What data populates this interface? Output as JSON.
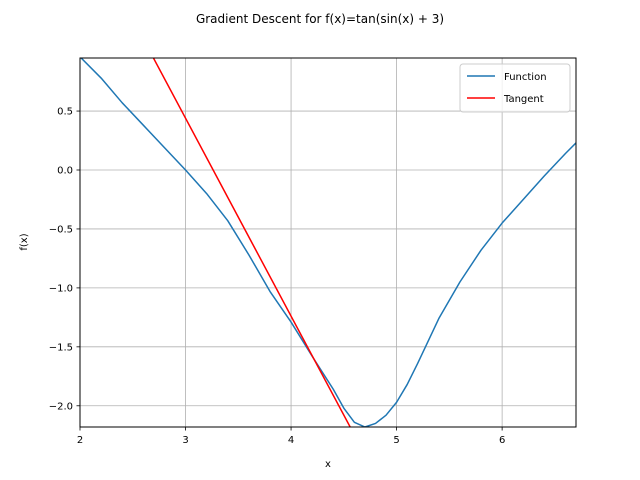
{
  "chart_data": {
    "type": "line",
    "title": "Gradient Descent for f(x)=tan(sin(x) + 3)",
    "xlabel": "x",
    "ylabel": "f(x)",
    "xlim": [
      2.0,
      6.7
    ],
    "ylim": [
      -2.18,
      0.95
    ],
    "xticks": [
      2,
      3,
      4,
      5,
      6
    ],
    "xtick_labels": [
      "2",
      "3",
      "4",
      "5",
      "6"
    ],
    "yticks": [
      -2.0,
      -1.5,
      -1.0,
      -0.5,
      0.0,
      0.5
    ],
    "ytick_labels": [
      "−2.0",
      "−1.5",
      "−1.0",
      "−0.5",
      "0.0",
      "0.5"
    ],
    "grid": true,
    "legend_position": "top-right",
    "series": [
      {
        "name": "Function",
        "color": "#1f77b4",
        "x": [
          2.0,
          2.2,
          2.4,
          2.6,
          2.8,
          3.0,
          3.2,
          3.4,
          3.6,
          3.8,
          4.0,
          4.2,
          4.4,
          4.5,
          4.6,
          4.7,
          4.8,
          4.9,
          5.0,
          5.1,
          5.2,
          5.4,
          5.6,
          5.8,
          6.0,
          6.2,
          6.4,
          6.6,
          6.7
        ],
        "y": [
          0.96,
          0.78,
          0.57,
          0.38,
          0.19,
          0.0,
          -0.2,
          -0.43,
          -0.72,
          -1.03,
          -1.29,
          -1.58,
          -1.86,
          -2.02,
          -2.14,
          -2.18,
          -2.15,
          -2.08,
          -1.97,
          -1.82,
          -1.64,
          -1.26,
          -0.95,
          -0.68,
          -0.45,
          -0.25,
          -0.05,
          0.14,
          0.23
        ]
      },
      {
        "name": "Tangent",
        "color": "#ff0000",
        "x": [
          2.69,
          4.56
        ],
        "y": [
          0.96,
          -2.18
        ]
      }
    ]
  }
}
